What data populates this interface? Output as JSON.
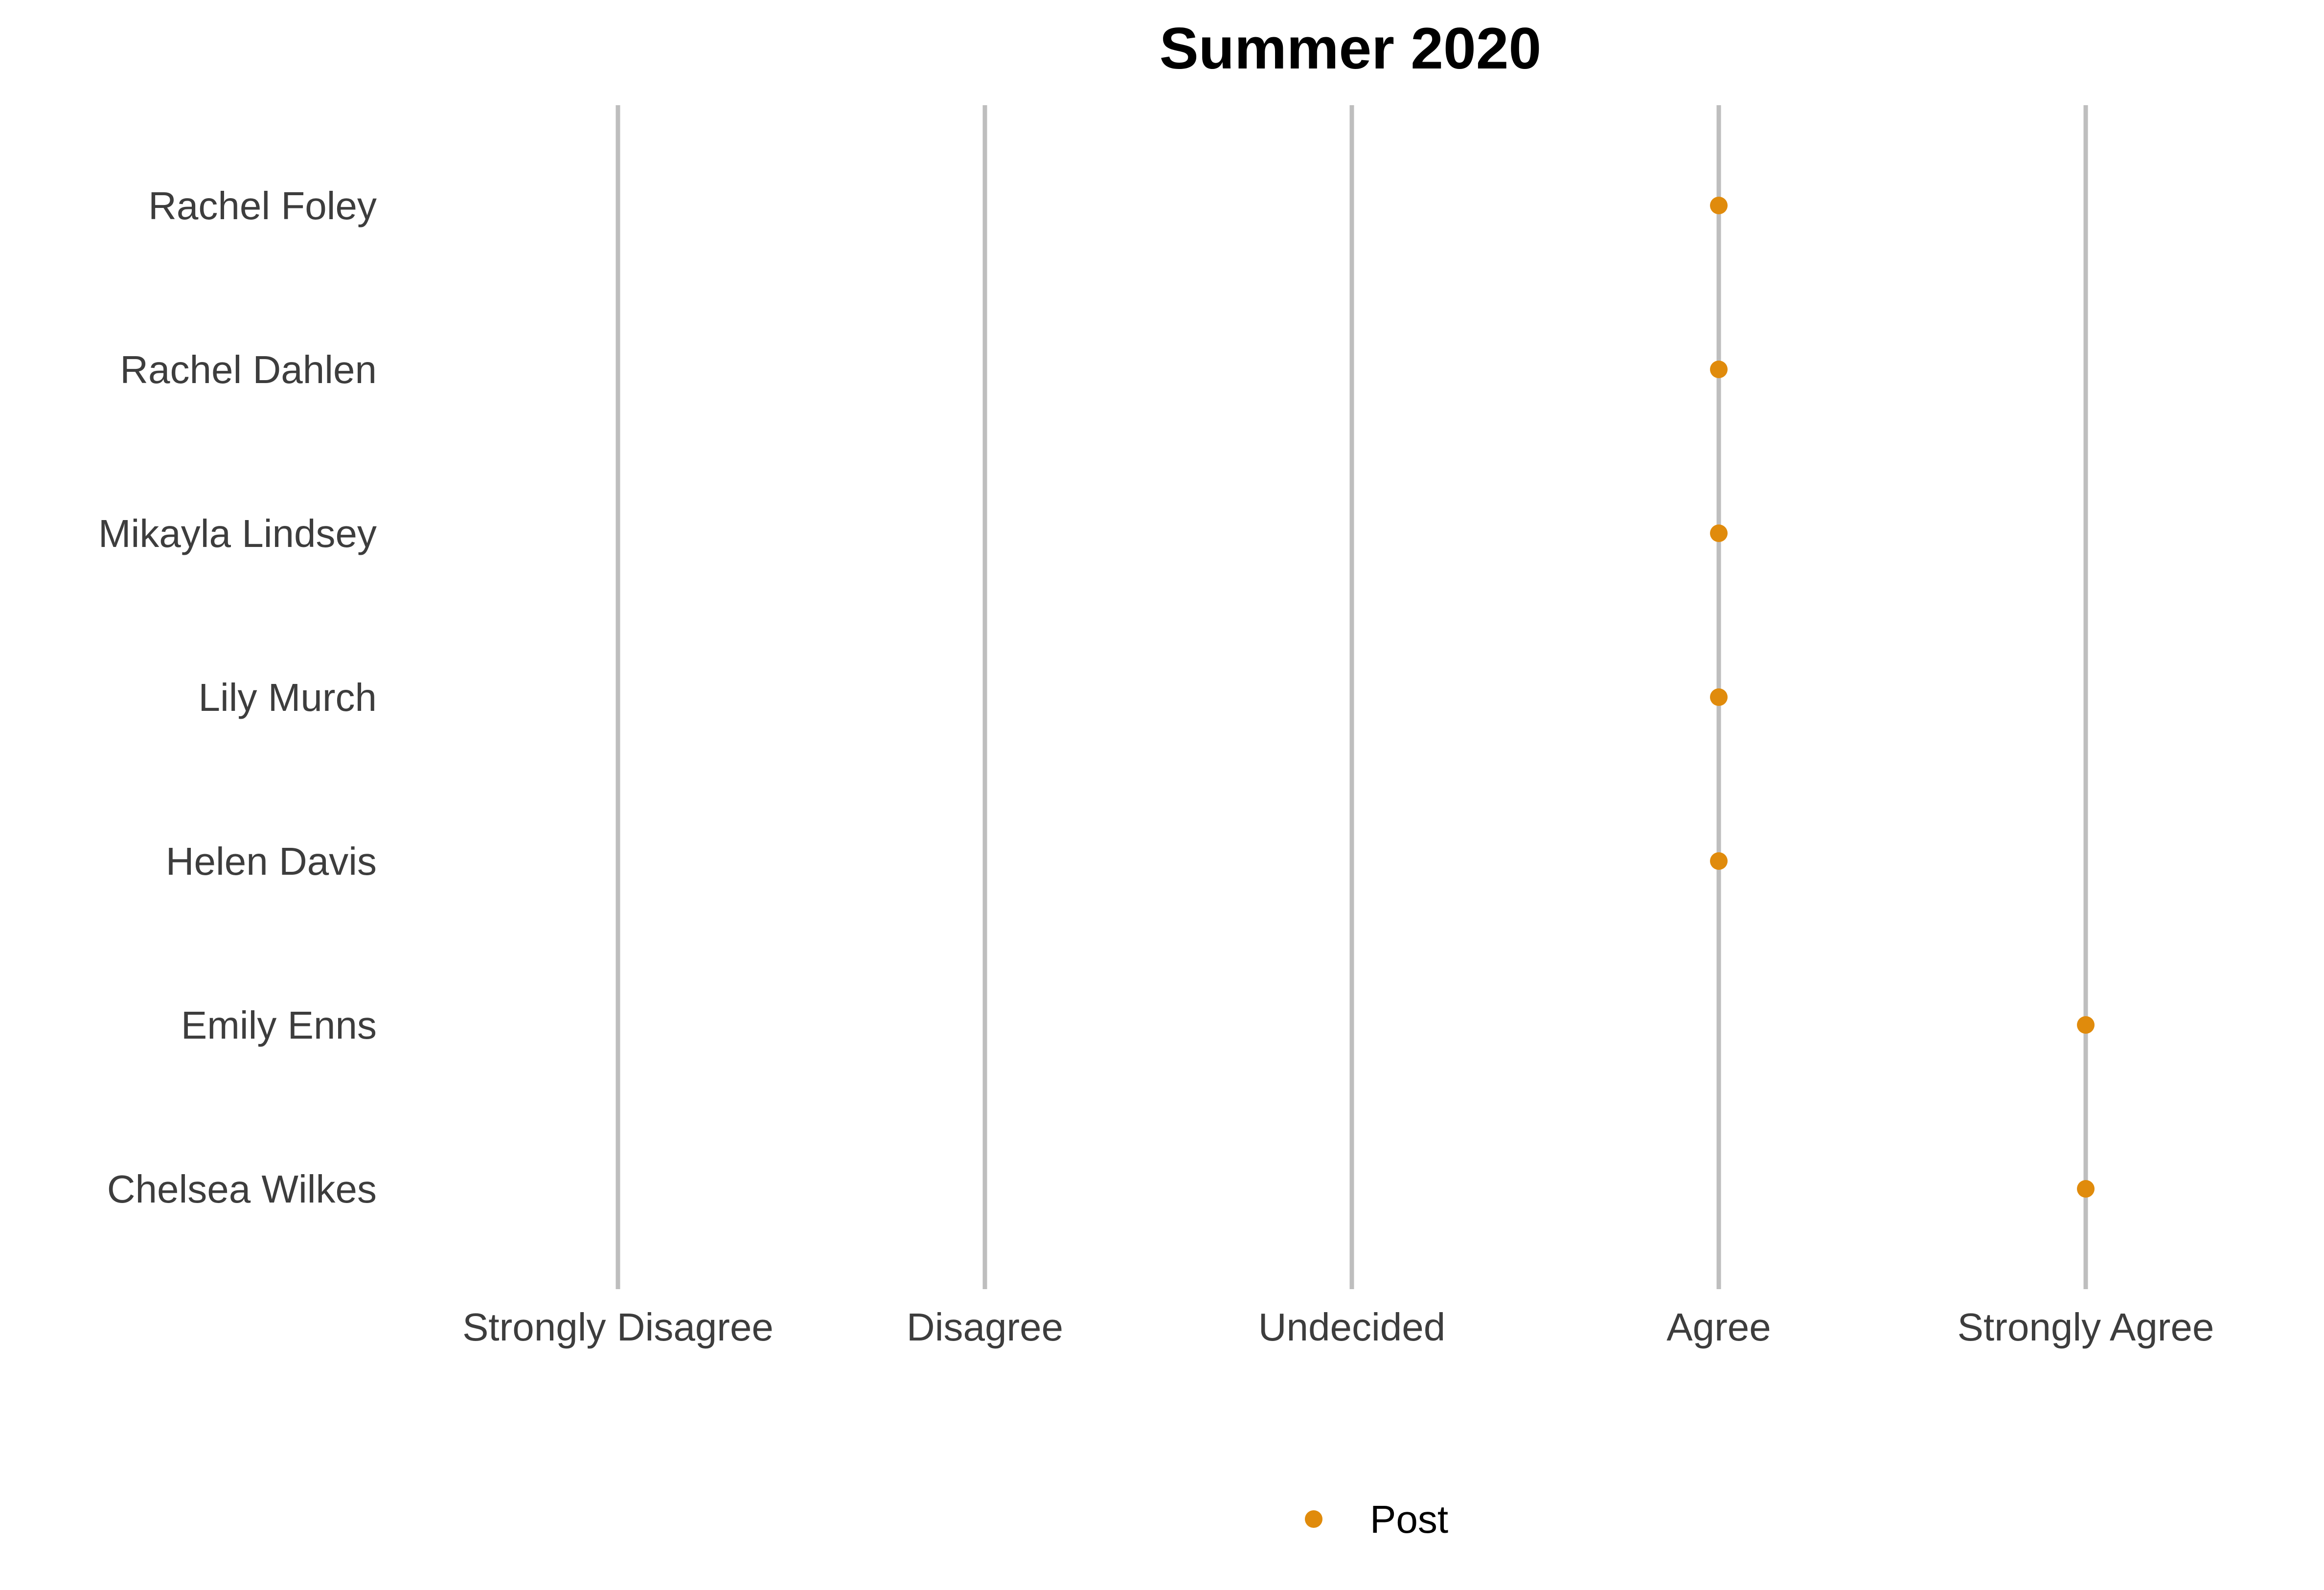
{
  "chart_data": {
    "type": "scatter",
    "title": "Summer 2020",
    "xlabel": "",
    "ylabel": "",
    "x_categories": [
      "Strongly Disagree",
      "Disagree",
      "Undecided",
      "Agree",
      "Strongly Agree"
    ],
    "y_categories": [
      "Rachel Foley",
      "Rachel Dahlen",
      "Mikayla Lindsey",
      "Lily Murch",
      "Helen Davis",
      "Emily Enns",
      "Chelsea Wilkes"
    ],
    "series": [
      {
        "name": "Post",
        "color": "#e08b0c",
        "points": [
          {
            "y": "Rachel Foley",
            "x": "Agree"
          },
          {
            "y": "Rachel Dahlen",
            "x": "Agree"
          },
          {
            "y": "Mikayla Lindsey",
            "x": "Agree"
          },
          {
            "y": "Lily Murch",
            "x": "Agree"
          },
          {
            "y": "Helen Davis",
            "x": "Agree"
          },
          {
            "y": "Emily Enns",
            "x": "Strongly Agree"
          },
          {
            "y": "Chelsea Wilkes",
            "x": "Strongly Agree"
          }
        ]
      }
    ],
    "grid": "vertical-only",
    "gridline_color": "#bebebe",
    "legend_position": "bottom"
  }
}
